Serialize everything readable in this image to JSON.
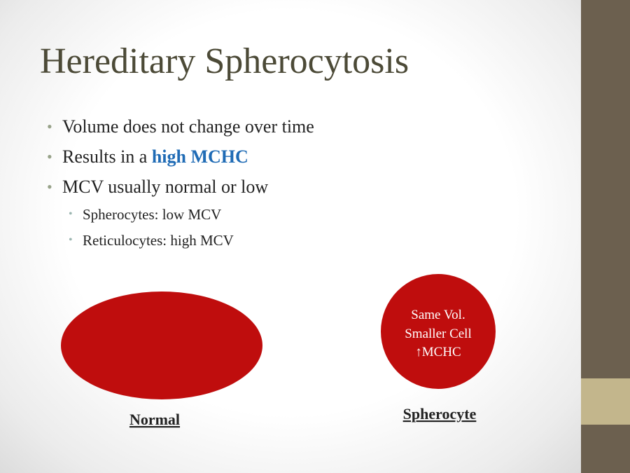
{
  "title": "Hereditary Spherocytosis",
  "bullets": [
    {
      "text": "Volume does not change over time"
    },
    {
      "text": "Results in a ",
      "emphasis": "high MCHC"
    },
    {
      "text": "MCV usually normal or low",
      "sub": [
        "Spherocytes: low MCV",
        "Reticulocytes: high MCV"
      ]
    }
  ],
  "figures": {
    "normal": {
      "label": "Normal"
    },
    "spherocyte": {
      "label": "Spherocyte",
      "lines": [
        "Same Vol.",
        "Smaller Cell",
        "↑MCHC"
      ]
    }
  }
}
